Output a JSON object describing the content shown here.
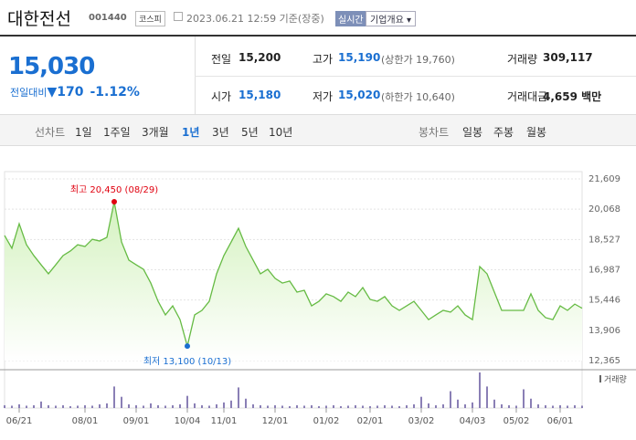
{
  "header": {
    "name": "대한전선",
    "code": "001440",
    "market": "코스피",
    "time": "2023.06.21 12:59 기준(장중)",
    "realtime": "실시간",
    "company_button": "기업개요"
  },
  "quote": {
    "price": "15,030",
    "change_label": "전일대비",
    "change": "170",
    "change_rate": "-1.12%"
  },
  "stats": {
    "rows": [
      [
        {
          "label": "전일",
          "value": "15,200"
        },
        {
          "label": "고가",
          "value": "15,190",
          "note": "(상한가 19,760)"
        },
        {
          "label": "거래량",
          "value": "309,117"
        }
      ],
      [
        {
          "label": "시가",
          "value": "15,180"
        },
        {
          "label": "저가",
          "value": "15,020",
          "note": "(하한가 10,640)"
        },
        {
          "label": "거래대금",
          "value": "4,659 백만"
        }
      ]
    ]
  },
  "tabs": {
    "line_label": "선차트",
    "line_periods": [
      "1일",
      "1주일",
      "3개월",
      "1년",
      "3년",
      "5년",
      "10년"
    ],
    "active": 3,
    "candle_label": "봉차트",
    "candle_periods": [
      "일봉",
      "주봉",
      "월봉"
    ]
  },
  "chart_data": [
    {
      "type": "line",
      "color": "#66bb44",
      "fill": "#d4f2bf",
      "values": [
        18730,
        18080,
        19330,
        18260,
        17710,
        17240,
        16780,
        17240,
        17710,
        17940,
        18260,
        18170,
        18540,
        18450,
        18640,
        20450,
        18400,
        17480,
        17240,
        17010,
        16310,
        15380,
        14690,
        15150,
        14450,
        13100,
        14690,
        14920,
        15380,
        16780,
        17710,
        18400,
        19100,
        18170,
        17480,
        16780,
        17010,
        16550,
        16310,
        16410,
        15850,
        15940,
        15150,
        15380,
        15760,
        15620,
        15380,
        15850,
        15620,
        16080,
        15480,
        15380,
        15620,
        15150,
        14920,
        15150,
        15380,
        14920,
        14450,
        14690,
        14920,
        14830,
        15150,
        14690,
        14450,
        17150,
        16780,
        15850,
        14920,
        14920,
        14920,
        14920,
        15760,
        14920,
        14550,
        14450,
        15150,
        14920,
        15240,
        15030
      ],
      "ylim": [
        12365,
        21609
      ],
      "yticks": [
        {
          "value": 21609,
          "label": "21,609"
        },
        {
          "value": 20068,
          "label": "20,068"
        },
        {
          "value": 18527,
          "label": "18,527"
        },
        {
          "value": 16987,
          "label": "16,987"
        },
        {
          "value": 15446,
          "label": "15,446"
        },
        {
          "value": 13906,
          "label": "13,906"
        },
        {
          "value": 12365,
          "label": "12,365"
        }
      ],
      "grid": true,
      "annotations": [
        {
          "label": "최고 20,450 (08/29)",
          "at": "max",
          "color": "#e0000f"
        },
        {
          "label": "최저 13,100 (10/13)",
          "at": "min",
          "color": "#1a6fd1"
        }
      ]
    },
    {
      "type": "bar",
      "categories": [
        null,
        null,
        "06/21",
        null,
        null,
        null,
        null,
        null,
        null,
        null,
        null,
        "08/01",
        null,
        null,
        null,
        null,
        null,
        null,
        "09/01",
        null,
        null,
        null,
        null,
        null,
        null,
        "10/04",
        null,
        null,
        null,
        null,
        "11/01",
        null,
        null,
        null,
        null,
        null,
        null,
        "12/01",
        null,
        null,
        null,
        null,
        null,
        null,
        "01/02",
        null,
        null,
        null,
        null,
        null,
        "02/01",
        null,
        null,
        null,
        null,
        null,
        null,
        "03/02",
        null,
        null,
        null,
        null,
        null,
        null,
        "04/03",
        null,
        null,
        null,
        null,
        null,
        "05/02",
        null,
        null,
        null,
        null,
        null,
        "06/01",
        null,
        null,
        null
      ],
      "series": [
        {
          "name": "거래량",
          "color": "#8a7fb5",
          "values": [
            300000,
            250000,
            400000,
            250000,
            300000,
            700000,
            300000,
            250000,
            300000,
            200000,
            250000,
            300000,
            250000,
            400000,
            500000,
            2300000,
            1200000,
            400000,
            300000,
            250000,
            500000,
            300000,
            250000,
            300000,
            400000,
            1300000,
            500000,
            300000,
            250000,
            400000,
            600000,
            800000,
            2200000,
            1000000,
            400000,
            300000,
            250000,
            300000,
            250000,
            200000,
            300000,
            250000,
            300000,
            200000,
            250000,
            300000,
            200000,
            250000,
            300000,
            250000,
            200000,
            250000,
            300000,
            250000,
            200000,
            300000,
            400000,
            1200000,
            500000,
            300000,
            400000,
            1800000,
            900000,
            400000,
            600000,
            3800000,
            2300000,
            900000,
            400000,
            300000,
            250000,
            2000000,
            1000000,
            400000,
            300000,
            250000,
            300000,
            250000,
            300000,
            250000
          ]
        }
      ]
    }
  ]
}
